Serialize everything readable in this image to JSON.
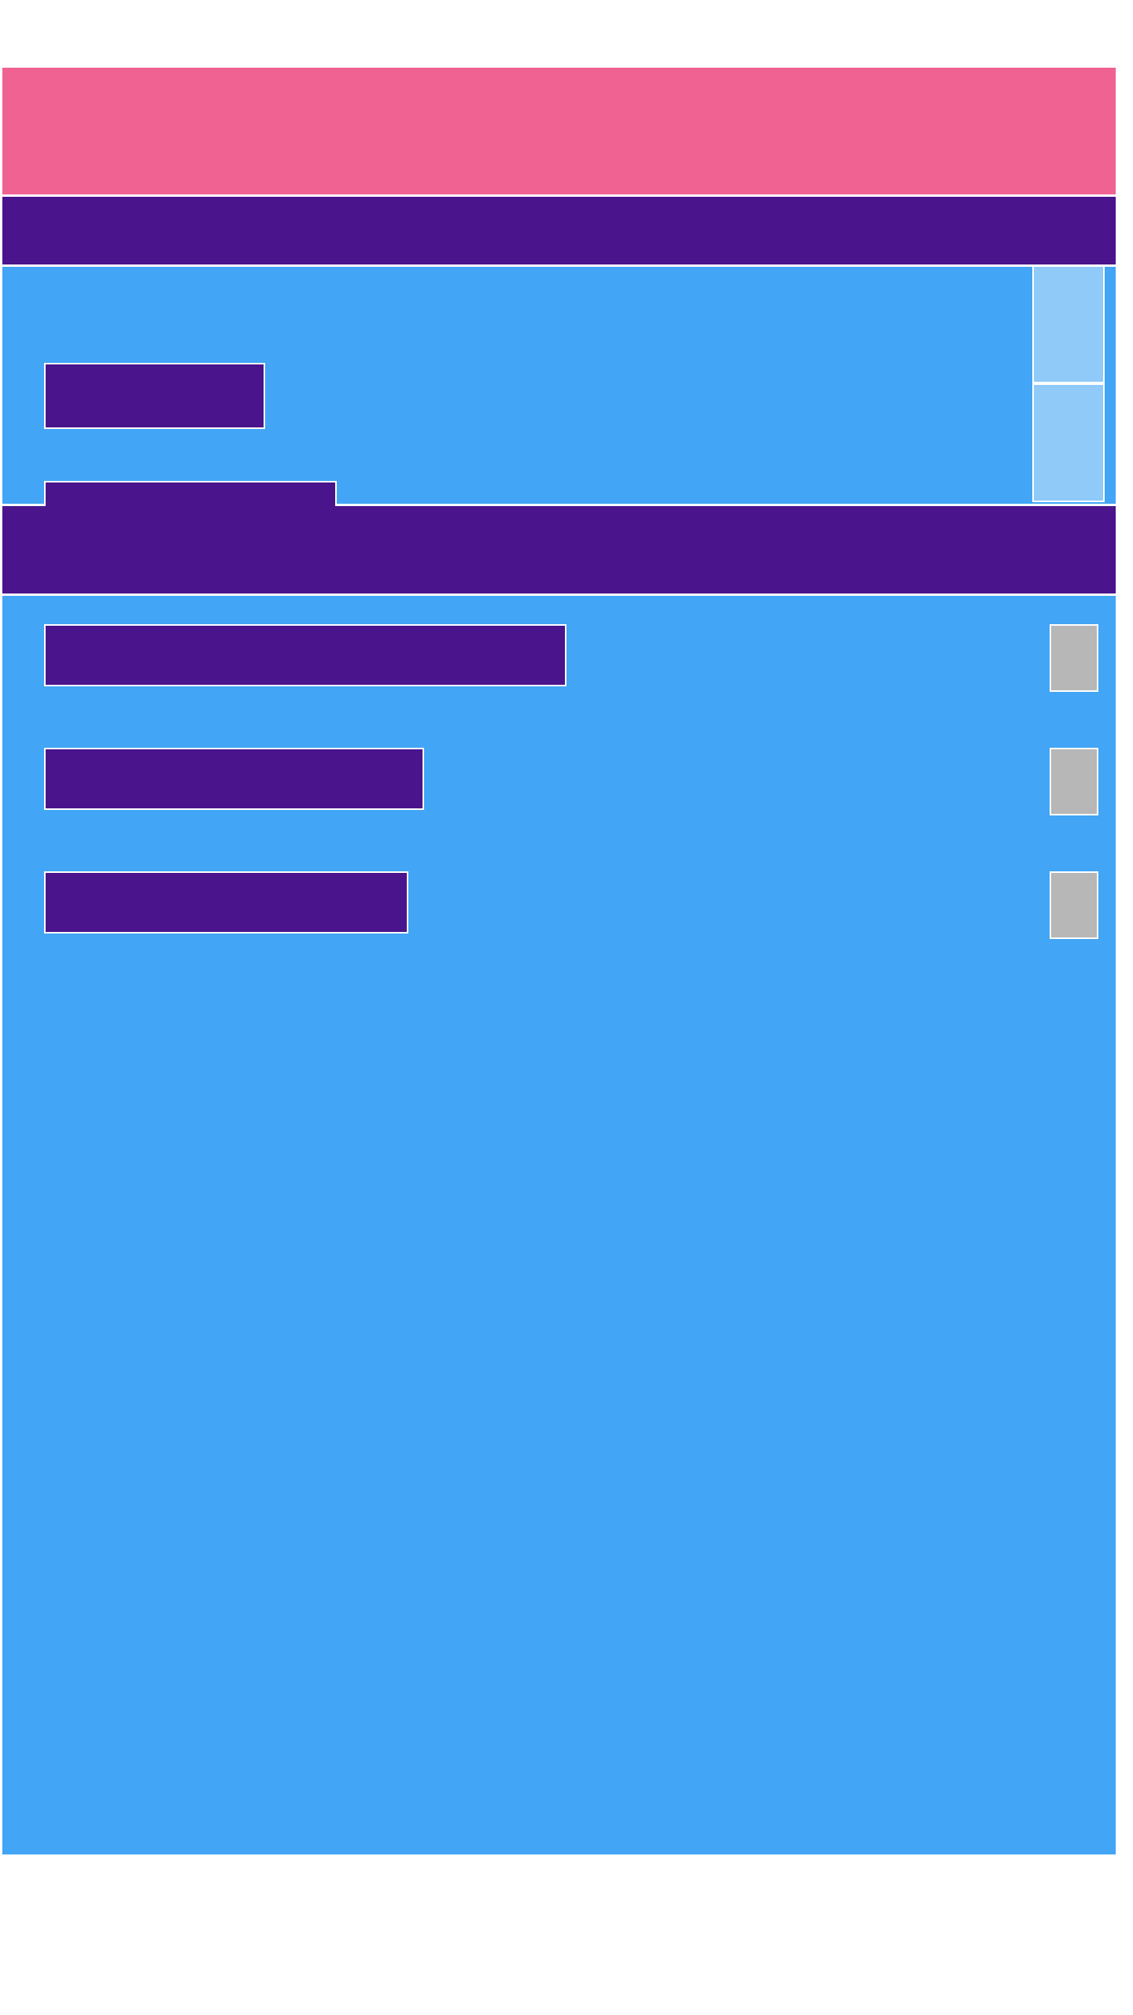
{
  "colors": {
    "header": "#f06292",
    "section_header": "#4a148c",
    "panel": "#42a5f5",
    "tile_light": "#90caf9",
    "toggle": "#b7b7b7",
    "border": "#ffffff"
  },
  "header": {
    "title": ""
  },
  "section_one": {
    "title": "",
    "items": [
      {
        "label": ""
      },
      {
        "label": ""
      }
    ]
  },
  "section_two": {
    "title": "",
    "items": [
      {
        "label": ""
      },
      {
        "label": ""
      },
      {
        "label": ""
      }
    ]
  }
}
